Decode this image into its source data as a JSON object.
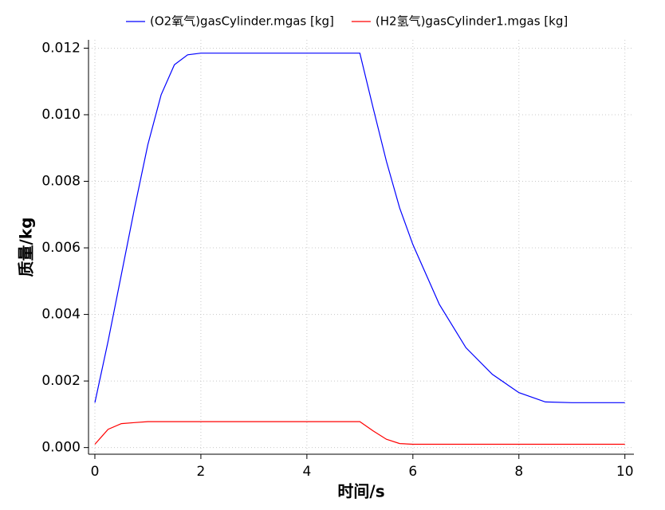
{
  "chart_data": {
    "type": "line",
    "xlabel": "时间/s",
    "ylabel": "质量/kg",
    "x": [
      0,
      0.25,
      0.5,
      0.75,
      1,
      1.25,
      1.5,
      1.75,
      2,
      5,
      5.25,
      5.5,
      5.75,
      6,
      6.5,
      7,
      7.5,
      8,
      8.5,
      9,
      10
    ],
    "series": [
      {
        "name": "(O2氧气)gasCylinder.mgas [kg]",
        "color": "#0000ff",
        "values": [
          0.00135,
          0.0032,
          0.0052,
          0.0072,
          0.0091,
          0.0106,
          0.0115,
          0.0118,
          0.01185,
          0.01185,
          0.0102,
          0.0086,
          0.0072,
          0.0061,
          0.0043,
          0.003,
          0.0022,
          0.00165,
          0.00137,
          0.00135,
          0.00135
        ]
      },
      {
        "name": "(H2氢气)gasCylinder1.mgas [kg]",
        "color": "#ff0000",
        "values": [
          0.0001,
          0.00055,
          0.00072,
          0.00075,
          0.00078,
          0.00078,
          0.00078,
          0.00078,
          0.00078,
          0.00078,
          0.0005,
          0.00025,
          0.00012,
          0.0001,
          0.0001,
          0.0001,
          0.0001,
          0.0001,
          0.0001,
          0.0001,
          0.0001
        ]
      }
    ],
    "xlim": [
      -0.12,
      10.17
    ],
    "ylim": [
      -0.0002,
      0.01225
    ],
    "xticks": [
      0,
      2,
      4,
      6,
      8,
      10
    ],
    "yticks": [
      {
        "value": 0,
        "label": "0.000"
      },
      0.002,
      0.004,
      0.006,
      0.008,
      {
        "value": 0.01,
        "label": "0.010"
      },
      0.012
    ],
    "grid": true
  }
}
